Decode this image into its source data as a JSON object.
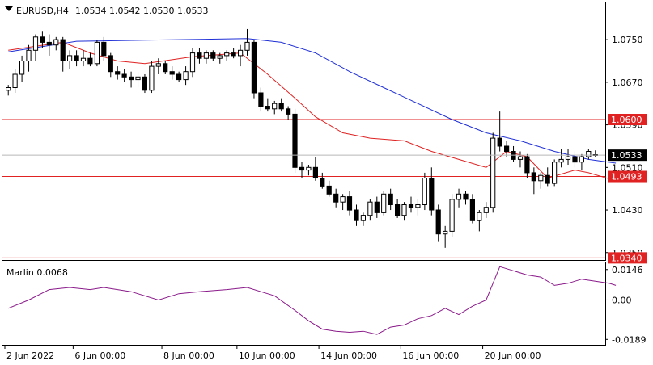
{
  "header": {
    "symbol_line": "EURUSD,H4",
    "ohlc_line": "1.0534 1.0542 1.0530 1.0533"
  },
  "indicator_header": "Marlin 0.0068",
  "chart_data": [
    {
      "type": "candlestick",
      "title": "EURUSD,H4",
      "ylim": [
        1.0336,
        1.082
      ],
      "price_ticks": [
        "1.0750",
        "1.0670",
        "1.0590",
        "1.0510",
        "1.0430",
        "1.0350"
      ],
      "x_ticks": [
        "2 Jun 2022",
        "6 Jun 00:00",
        "8 Jun 00:00",
        "10 Jun 00:00",
        "14 Jun 00:00",
        "16 Jun 00:00",
        "20 Jun 00:00"
      ],
      "last_price": "1.0533",
      "levels": [
        {
          "value": 1.06,
          "label": "1.0600"
        },
        {
          "value": 1.0493,
          "label": "1.0493"
        },
        {
          "value": 1.034,
          "label": "1.0340"
        }
      ],
      "ohlc": [
        [
          1.0655,
          1.0665,
          1.0645,
          1.066
        ],
        [
          1.066,
          1.0695,
          1.065,
          1.0685
        ],
        [
          1.0685,
          1.072,
          1.067,
          1.071
        ],
        [
          1.071,
          1.074,
          1.069,
          1.073
        ],
        [
          1.073,
          1.076,
          1.071,
          1.0755
        ],
        [
          1.0755,
          1.0765,
          1.0735,
          1.0745
        ],
        [
          1.0745,
          1.076,
          1.072,
          1.074
        ],
        [
          1.074,
          1.0755,
          1.073,
          1.075
        ],
        [
          1.075,
          1.0755,
          1.069,
          1.071
        ],
        [
          1.071,
          1.073,
          1.0695,
          1.072
        ],
        [
          1.072,
          1.073,
          1.07,
          1.071
        ],
        [
          1.071,
          1.073,
          1.07,
          1.0715
        ],
        [
          1.0715,
          1.0725,
          1.07,
          1.0705
        ],
        [
          1.0705,
          1.075,
          1.07,
          1.0745
        ],
        [
          1.0745,
          1.0755,
          1.071,
          1.072
        ],
        [
          1.072,
          1.0725,
          1.068,
          1.069
        ],
        [
          1.069,
          1.07,
          1.0675,
          1.0685
        ],
        [
          1.0685,
          1.0695,
          1.067,
          1.068
        ],
        [
          1.068,
          1.069,
          1.066,
          1.0675
        ],
        [
          1.0675,
          1.069,
          1.066,
          1.068
        ],
        [
          1.068,
          1.0685,
          1.065,
          1.0655
        ],
        [
          1.0655,
          1.071,
          1.065,
          1.07
        ],
        [
          1.07,
          1.0715,
          1.0685,
          1.0705
        ],
        [
          1.0705,
          1.071,
          1.0685,
          1.069
        ],
        [
          1.069,
          1.07,
          1.0675,
          1.0685
        ],
        [
          1.0685,
          1.069,
          1.067,
          1.0675
        ],
        [
          1.0675,
          1.07,
          1.0665,
          1.069
        ],
        [
          1.069,
          1.0735,
          1.068,
          1.0725
        ],
        [
          1.0725,
          1.0735,
          1.0705,
          1.0715
        ],
        [
          1.0715,
          1.073,
          1.0705,
          1.0725
        ],
        [
          1.0725,
          1.073,
          1.071,
          1.0715
        ],
        [
          1.0715,
          1.0725,
          1.0705,
          1.072
        ],
        [
          1.072,
          1.073,
          1.071,
          1.0725
        ],
        [
          1.0725,
          1.0735,
          1.0715,
          1.072
        ],
        [
          1.072,
          1.074,
          1.07,
          1.073
        ],
        [
          1.073,
          1.077,
          1.072,
          1.0745
        ],
        [
          1.0745,
          1.075,
          1.064,
          1.065
        ],
        [
          1.065,
          1.066,
          1.0615,
          1.0625
        ],
        [
          1.0625,
          1.064,
          1.0615,
          1.062
        ],
        [
          1.062,
          1.0635,
          1.061,
          1.063
        ],
        [
          1.063,
          1.064,
          1.0615,
          1.062
        ],
        [
          1.062,
          1.0625,
          1.06,
          1.061
        ],
        [
          1.061,
          1.062,
          1.05,
          1.051
        ],
        [
          1.051,
          1.052,
          1.049,
          1.0505
        ],
        [
          1.0505,
          1.0515,
          1.0495,
          1.051
        ],
        [
          1.051,
          1.053,
          1.0485,
          1.049
        ],
        [
          1.049,
          1.05,
          1.047,
          1.0475
        ],
        [
          1.0475,
          1.0485,
          1.0455,
          1.046
        ],
        [
          1.046,
          1.047,
          1.0435,
          1.0445
        ],
        [
          1.0445,
          1.046,
          1.043,
          1.0455
        ],
        [
          1.0455,
          1.0465,
          1.042,
          1.043
        ],
        [
          1.043,
          1.044,
          1.04,
          1.041
        ],
        [
          1.041,
          1.0425,
          1.04,
          1.042
        ],
        [
          1.042,
          1.045,
          1.041,
          1.0445
        ],
        [
          1.0445,
          1.0455,
          1.0415,
          1.0425
        ],
        [
          1.0425,
          1.0465,
          1.042,
          1.046
        ],
        [
          1.046,
          1.047,
          1.043,
          1.044
        ],
        [
          1.044,
          1.045,
          1.0415,
          1.042
        ],
        [
          1.042,
          1.0445,
          1.041,
          1.044
        ],
        [
          1.044,
          1.0455,
          1.0425,
          1.0435
        ],
        [
          1.0435,
          1.045,
          1.042,
          1.044
        ],
        [
          1.044,
          1.05,
          1.043,
          1.049
        ],
        [
          1.049,
          1.051,
          1.042,
          1.043
        ],
        [
          1.043,
          1.044,
          1.037,
          1.0385
        ],
        [
          1.0385,
          1.04,
          1.0359,
          1.039
        ],
        [
          1.039,
          1.046,
          1.038,
          1.045
        ],
        [
          1.045,
          1.047,
          1.0435,
          1.046
        ],
        [
          1.046,
          1.0465,
          1.044,
          1.045
        ],
        [
          1.045,
          1.046,
          1.0405,
          1.041
        ],
        [
          1.041,
          1.043,
          1.039,
          1.0425
        ],
        [
          1.0425,
          1.0445,
          1.0415,
          1.0435
        ],
        [
          1.0435,
          1.0575,
          1.0425,
          1.0565
        ],
        [
          1.0565,
          1.0615,
          1.054,
          1.055
        ],
        [
          1.055,
          1.056,
          1.053,
          1.054
        ],
        [
          1.054,
          1.055,
          1.052,
          1.0525
        ],
        [
          1.0525,
          1.054,
          1.051,
          1.053
        ],
        [
          1.053,
          1.0535,
          1.049,
          1.05
        ],
        [
          1.05,
          1.051,
          1.046,
          1.0485
        ],
        [
          1.0485,
          1.05,
          1.047,
          1.0495
        ],
        [
          1.0495,
          1.051,
          1.0475,
          1.048
        ],
        [
          1.048,
          1.0525,
          1.0475,
          1.052
        ],
        [
          1.052,
          1.0545,
          1.051,
          1.0525
        ],
        [
          1.0525,
          1.0545,
          1.0515,
          1.053
        ],
        [
          1.053,
          1.054,
          1.051,
          1.052
        ],
        [
          1.052,
          1.0535,
          1.0505,
          1.053
        ],
        [
          1.053,
          1.0545,
          1.0525,
          1.054
        ],
        [
          1.0534,
          1.0542,
          1.053,
          1.0533
        ]
      ],
      "ma_slow": [
        [
          0,
          1.0727
        ],
        [
          10,
          1.0747
        ],
        [
          20,
          1.0749
        ],
        [
          35,
          1.0752
        ],
        [
          40,
          1.0745
        ],
        [
          45,
          1.0725
        ],
        [
          50,
          1.069
        ],
        [
          55,
          1.066
        ],
        [
          60,
          1.063
        ],
        [
          65,
          1.06
        ],
        [
          70,
          1.0575
        ],
        [
          75,
          1.056
        ],
        [
          80,
          1.054
        ],
        [
          85,
          1.0525
        ],
        [
          89,
          1.0518
        ]
      ],
      "ma_fast": [
        [
          0,
          1.073
        ],
        [
          8,
          1.0745
        ],
        [
          12,
          1.0725
        ],
        [
          16,
          1.071
        ],
        [
          20,
          1.0705
        ],
        [
          27,
          1.0718
        ],
        [
          34,
          1.0725
        ],
        [
          38,
          1.0685
        ],
        [
          42,
          1.064
        ],
        [
          45,
          1.0605
        ],
        [
          49,
          1.0575
        ],
        [
          53,
          1.0565
        ],
        [
          58,
          1.056
        ],
        [
          62,
          1.054
        ],
        [
          66,
          1.0525
        ],
        [
          70,
          1.051
        ],
        [
          73,
          1.054
        ],
        [
          76,
          1.053
        ],
        [
          79,
          1.049
        ],
        [
          83,
          1.0505
        ],
        [
          85,
          1.05
        ],
        [
          89,
          1.0485
        ]
      ]
    },
    {
      "type": "line",
      "title": "Marlin 0.0068",
      "ylim": [
        -0.0215,
        0.018
      ],
      "y_ticks": [
        "0.0146",
        "0.00",
        "-0.0189"
      ],
      "series": [
        {
          "name": "Marlin",
          "values": [
            [
              0,
              -0.004
            ],
            [
              3,
              0.0
            ],
            [
              6,
              0.005
            ],
            [
              9,
              0.006
            ],
            [
              12,
              0.005
            ],
            [
              14,
              0.006
            ],
            [
              18,
              0.004
            ],
            [
              22,
              0.0
            ],
            [
              25,
              0.003
            ],
            [
              28,
              0.004
            ],
            [
              32,
              0.005
            ],
            [
              35,
              0.006
            ],
            [
              37,
              0.004
            ],
            [
              39,
              0.002
            ],
            [
              42,
              -0.005
            ],
            [
              44,
              -0.01
            ],
            [
              46,
              -0.014
            ],
            [
              48,
              -0.015
            ],
            [
              50,
              -0.0155
            ],
            [
              52,
              -0.015
            ],
            [
              54,
              -0.0165
            ],
            [
              56,
              -0.013
            ],
            [
              58,
              -0.012
            ],
            [
              60,
              -0.009
            ],
            [
              62,
              -0.0075
            ],
            [
              64,
              -0.004
            ],
            [
              66,
              -0.007
            ],
            [
              68,
              -0.003
            ],
            [
              70,
              0.0
            ],
            [
              72,
              0.016
            ],
            [
              74,
              0.014
            ],
            [
              76,
              0.012
            ],
            [
              78,
              0.011
            ],
            [
              80,
              0.007
            ],
            [
              82,
              0.008
            ],
            [
              84,
              0.01
            ],
            [
              86,
              0.009
            ],
            [
              88,
              0.008
            ],
            [
              89,
              0.007
            ]
          ]
        }
      ]
    }
  ],
  "colors": {
    "bull_fill": "#ffffff",
    "bear_fill": "#000000",
    "candle_stroke": "#000000",
    "ma_slow": "#1f2fd6",
    "ma_fast": "#e02222",
    "level": "#e02222",
    "marlin": "#8a1a8a",
    "last_price_bg": "#000000"
  }
}
